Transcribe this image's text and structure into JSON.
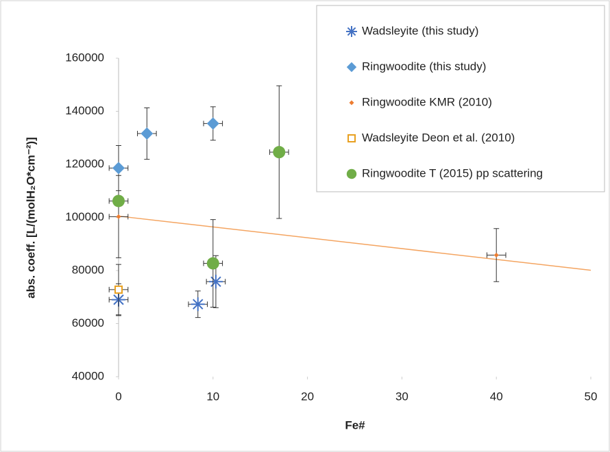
{
  "chart_data": {
    "type": "scatter",
    "xlabel": "Fe#",
    "ylabel": "abs. coeff. [L/(molH₂O*cm⁻²)]",
    "xlim": [
      0,
      50
    ],
    "xticks": [
      0,
      10,
      20,
      30,
      40,
      50
    ],
    "ylim": [
      40000,
      160000
    ],
    "yticks": [
      40000,
      60000,
      80000,
      100000,
      120000,
      140000,
      160000
    ],
    "series": [
      {
        "name": "Wadsleyite (this study)",
        "marker": "asterisk",
        "color": "#4472c4",
        "x": [
          0,
          8.4,
          10.3
        ],
        "y": [
          69000,
          67300,
          75800
        ],
        "xerr": [
          1,
          1,
          1
        ],
        "yerr": [
          6000,
          5000,
          9800
        ]
      },
      {
        "name": "Ringwoodite (this study)",
        "marker": "diamond",
        "color": "#5b9bd5",
        "x": [
          0,
          3,
          10
        ],
        "y": [
          118600,
          131600,
          135400
        ],
        "xerr": [
          1,
          1,
          1
        ],
        "yerr": [
          8500,
          9700,
          6300
        ]
      },
      {
        "name": "Ringwoodite KMR (2010)",
        "marker": "small-diamond",
        "color": "#ed7d31",
        "x": [
          0,
          40
        ],
        "y": [
          100300,
          85800
        ],
        "xerr": [
          1,
          1
        ],
        "yerr": [
          15500,
          10000
        ]
      },
      {
        "name": "Wadsleyite Deon et al. (2010)",
        "marker": "square",
        "color": "#e8a020",
        "x": [
          0
        ],
        "y": [
          72800
        ],
        "xerr": [
          1
        ],
        "yerr": [
          9500
        ]
      },
      {
        "name": "Ringwoodite T (2015) pp scattering",
        "marker": "circle",
        "color": "#70ad47",
        "x": [
          0,
          10,
          17
        ],
        "y": [
          106200,
          82700,
          124600
        ],
        "xerr": [
          1,
          1,
          1
        ],
        "yerr": [
          0,
          16500,
          25000
        ]
      }
    ],
    "trendline": {
      "color": "#f4a460",
      "x": [
        0,
        50
      ],
      "y": [
        100500,
        80100
      ]
    }
  }
}
